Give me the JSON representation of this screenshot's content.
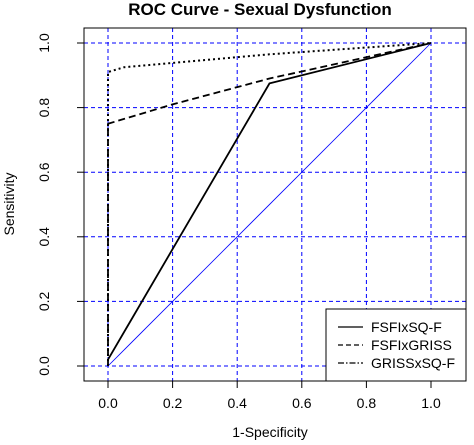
{
  "chart_data": {
    "type": "line",
    "title": "ROC Curve - Sexual Dysfunction",
    "xlabel": "1-Specificity",
    "ylabel": "Sensitivity",
    "xlim": [
      0,
      1
    ],
    "ylim": [
      0,
      1
    ],
    "x_ticks": [
      "0.0",
      "0.2",
      "0.4",
      "0.6",
      "0.8",
      "1.0"
    ],
    "y_ticks": [
      "0.0",
      "0.2",
      "0.4",
      "0.6",
      "0.8",
      "1.0"
    ],
    "grid": true,
    "grid_color": "#0000ff",
    "legend_position": "bottom-right",
    "reference_line": {
      "x": [
        0,
        1
      ],
      "y": [
        0,
        1
      ],
      "color": "#0000ff"
    },
    "series": [
      {
        "name": "FSFIxSQ-F",
        "style": "solid",
        "x": [
          0,
          0.5,
          1
        ],
        "y": [
          0.02,
          0.875,
          1
        ]
      },
      {
        "name": "FSFIxGRISS",
        "style": "dashed",
        "x": [
          0,
          0,
          0.2,
          0.5,
          1
        ],
        "y": [
          0,
          0.75,
          0.81,
          0.89,
          1
        ]
      },
      {
        "name": "GRISSxSQ-F",
        "style": "dotted",
        "x": [
          0,
          0,
          0.05,
          0.5,
          1
        ],
        "y": [
          0,
          0.91,
          0.925,
          0.965,
          1
        ]
      }
    ]
  }
}
